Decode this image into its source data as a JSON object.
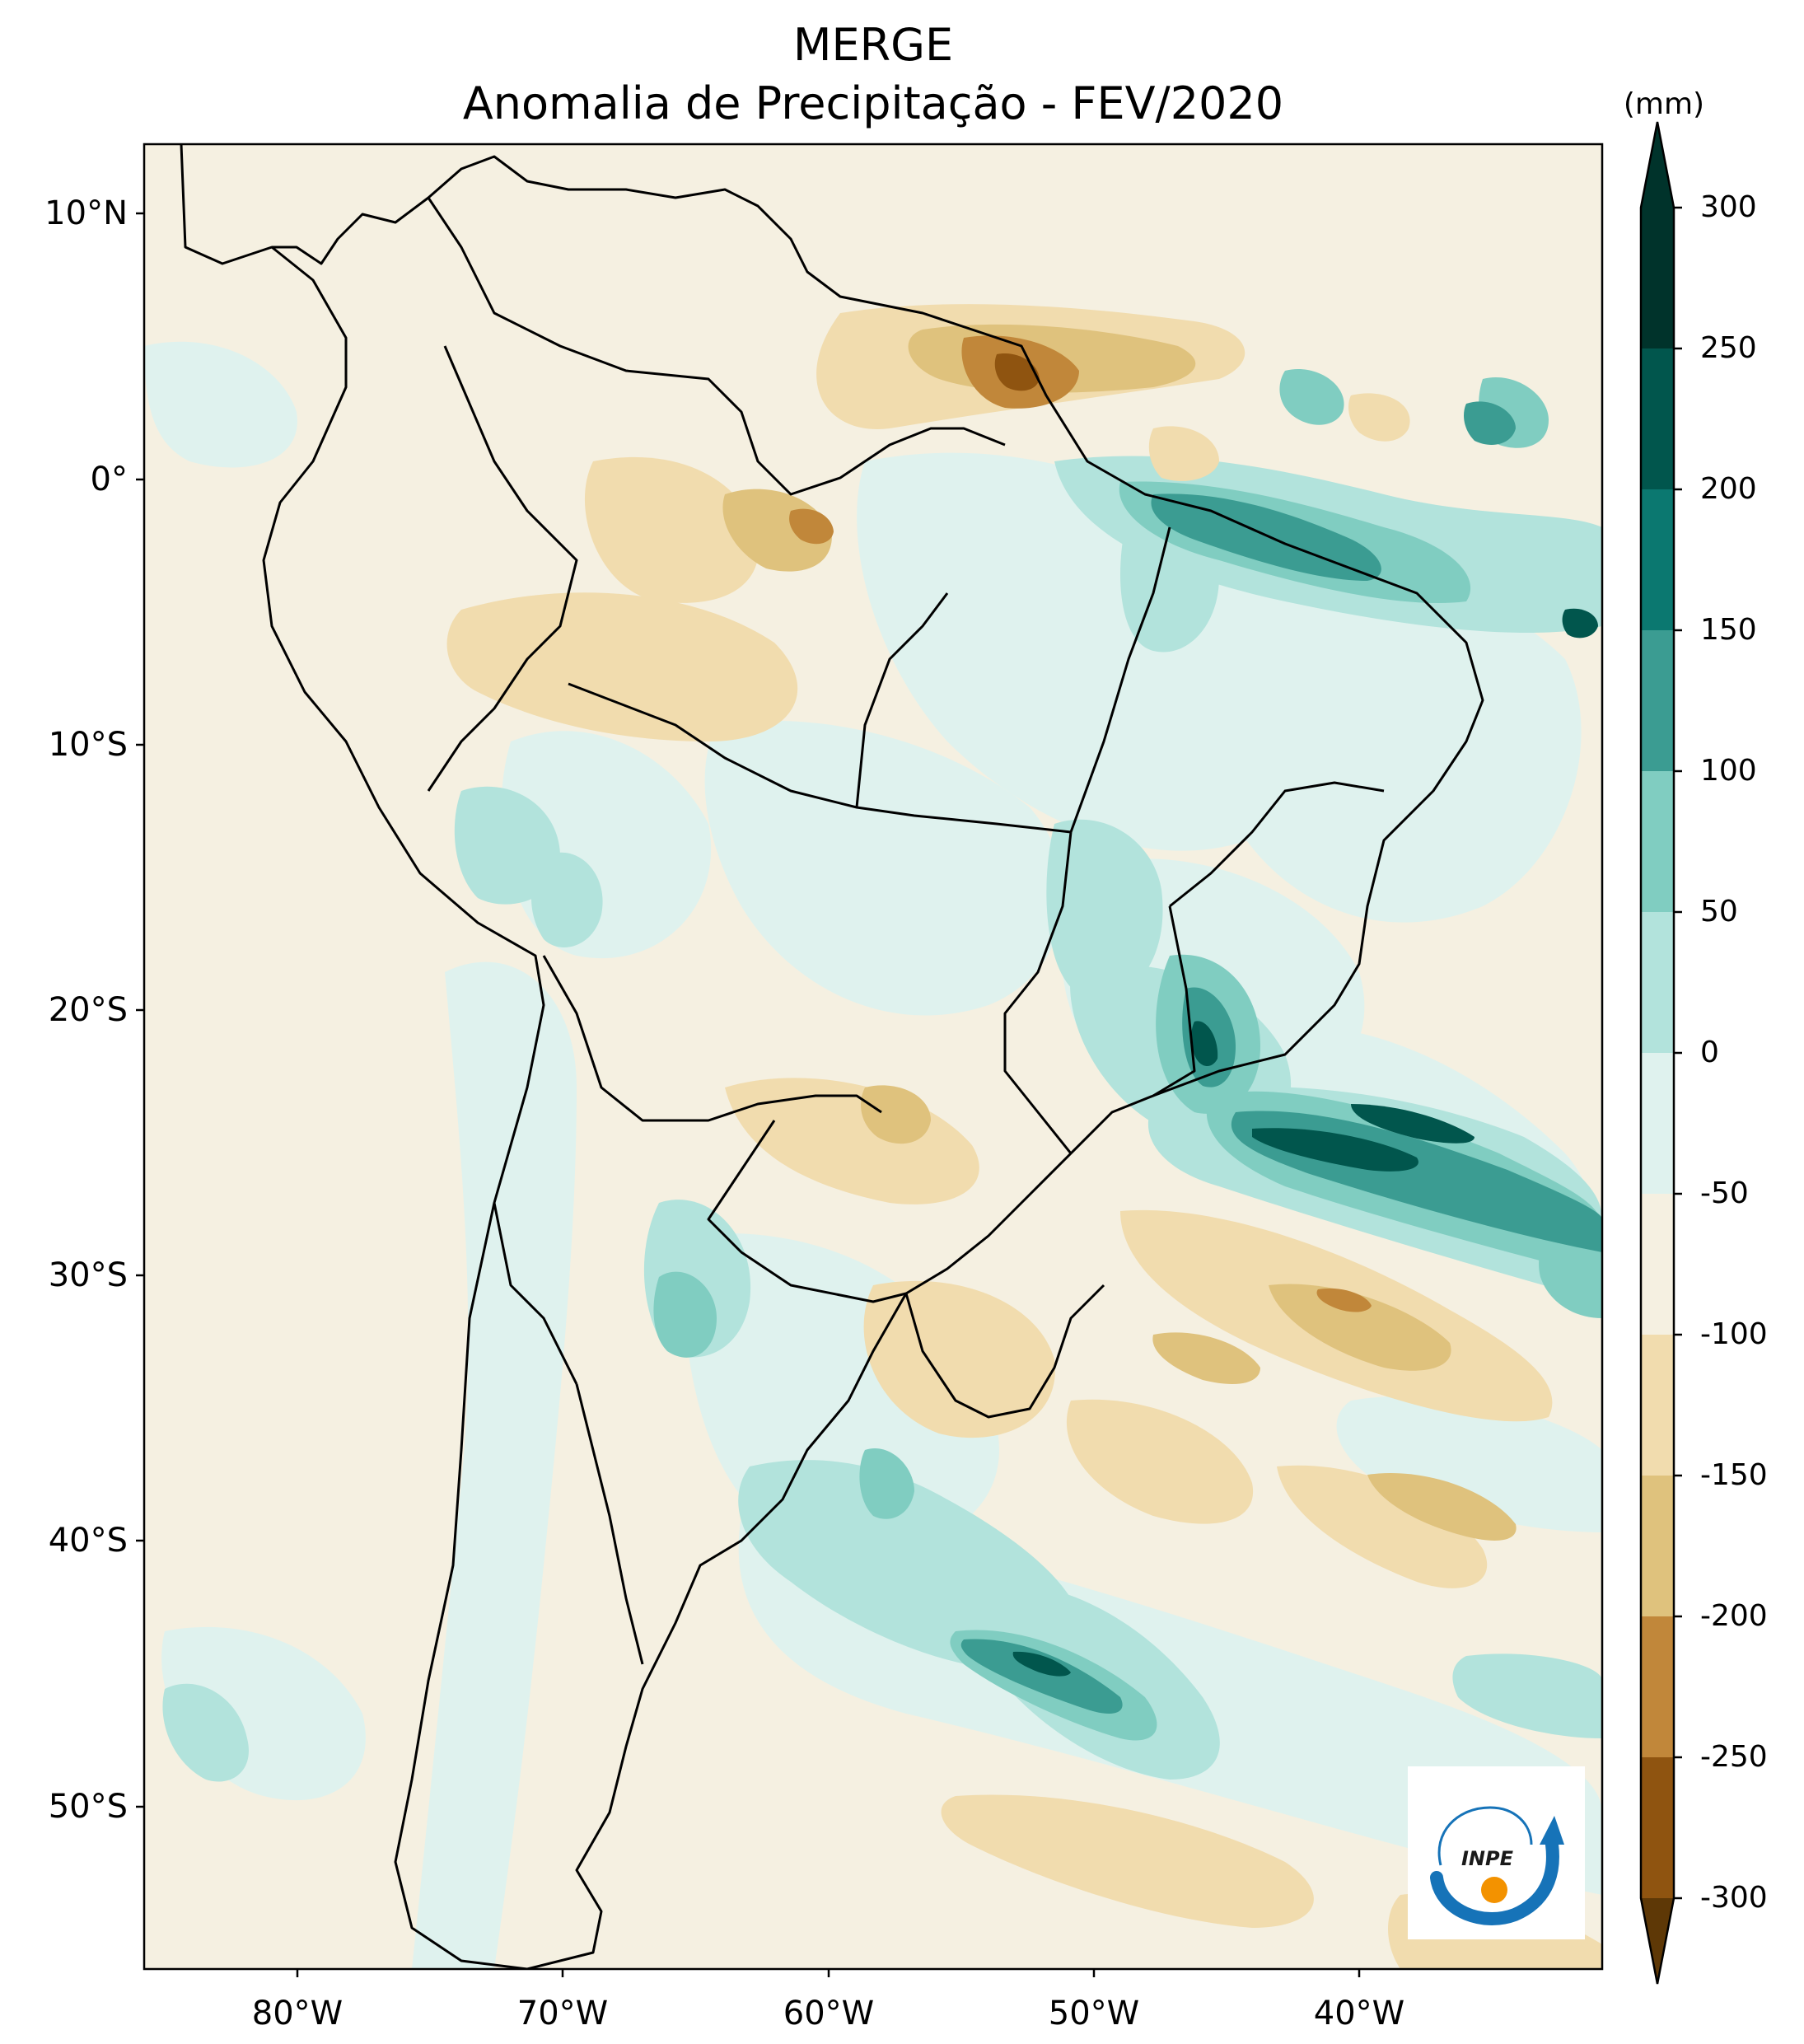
{
  "title": {
    "line1": "MERGE",
    "line2": "Anomalia de Precipitação - FEV/2020"
  },
  "axes": {
    "lat_labels": [
      "10°N",
      "0°",
      "10°S",
      "20°S",
      "30°S",
      "40°S",
      "50°S"
    ],
    "lon_labels": [
      "80°W",
      "70°W",
      "60°W",
      "50°W",
      "40°W"
    ]
  },
  "colorbar": {
    "unit": "(mm)",
    "ticks": [
      "300",
      "250",
      "200",
      "150",
      "100",
      "50",
      "0",
      "-50",
      "-100",
      "-150",
      "-200",
      "-250",
      "-300"
    ],
    "colors_top_to_bottom": [
      "#00332b",
      "#01564d",
      "#0b7870",
      "#3b9c92",
      "#80cdc1",
      "#b2e3dc",
      "#dff2ee",
      "#f5f0e1",
      "#f1dcae",
      "#dfc27d",
      "#c1873a",
      "#8f5410",
      "#5e3806"
    ]
  },
  "logo": {
    "text": "INPE"
  },
  "colors": {
    "land_neutral": "#f5f0e1",
    "ocean_neutral": "#f5f0e1",
    "wet_light": "#dff2ee",
    "wet_mid": "#b2e3dc",
    "wet_strong": "#80cdc1",
    "wet_deep": "#3b9c92",
    "wet_max": "#01564d",
    "dry_light": "#f1dcae",
    "dry_mid": "#dfc27d",
    "dry_strong": "#c1873a",
    "dry_max": "#8f5410",
    "border": "#000000",
    "logo_blue": "#1673b8",
    "logo_orange": "#f39200"
  }
}
